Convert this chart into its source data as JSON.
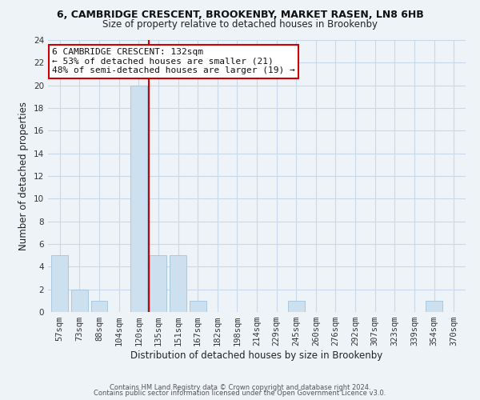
{
  "title_line1": "6, CAMBRIDGE CRESCENT, BROOKENBY, MARKET RASEN, LN8 6HB",
  "title_line2": "Size of property relative to detached houses in Brookenby",
  "xlabel": "Distribution of detached houses by size in Brookenby",
  "ylabel": "Number of detached properties",
  "bar_labels": [
    "57sqm",
    "73sqm",
    "88sqm",
    "104sqm",
    "120sqm",
    "135sqm",
    "151sqm",
    "167sqm",
    "182sqm",
    "198sqm",
    "214sqm",
    "229sqm",
    "245sqm",
    "260sqm",
    "276sqm",
    "292sqm",
    "307sqm",
    "323sqm",
    "339sqm",
    "354sqm",
    "370sqm"
  ],
  "bar_values": [
    5,
    2,
    1,
    0,
    20,
    5,
    5,
    1,
    0,
    0,
    0,
    0,
    1,
    0,
    0,
    0,
    0,
    0,
    0,
    1,
    0
  ],
  "bar_color": "#cce0f0",
  "bar_edgecolor": "#a8c8e0",
  "red_line_color": "#cc0000",
  "ylim": [
    0,
    24
  ],
  "yticks": [
    0,
    2,
    4,
    6,
    8,
    10,
    12,
    14,
    16,
    18,
    20,
    22,
    24
  ],
  "annotation_title": "6 CAMBRIDGE CRESCENT: 132sqm",
  "annotation_line1": "← 53% of detached houses are smaller (21)",
  "annotation_line2": "48% of semi-detached houses are larger (19) →",
  "annotation_box_facecolor": "#ffffff",
  "annotation_border_color": "#cc0000",
  "footer_line1": "Contains HM Land Registry data © Crown copyright and database right 2024.",
  "footer_line2": "Contains public sector information licensed under the Open Government Licence v3.0.",
  "grid_color": "#c8d8e8",
  "background_color": "#eef3f8",
  "title1_fontsize": 9.0,
  "title2_fontsize": 8.5,
  "xlabel_fontsize": 8.5,
  "ylabel_fontsize": 8.5,
  "tick_fontsize": 7.5,
  "ann_fontsize": 8.0,
  "footer_fontsize": 6.0
}
